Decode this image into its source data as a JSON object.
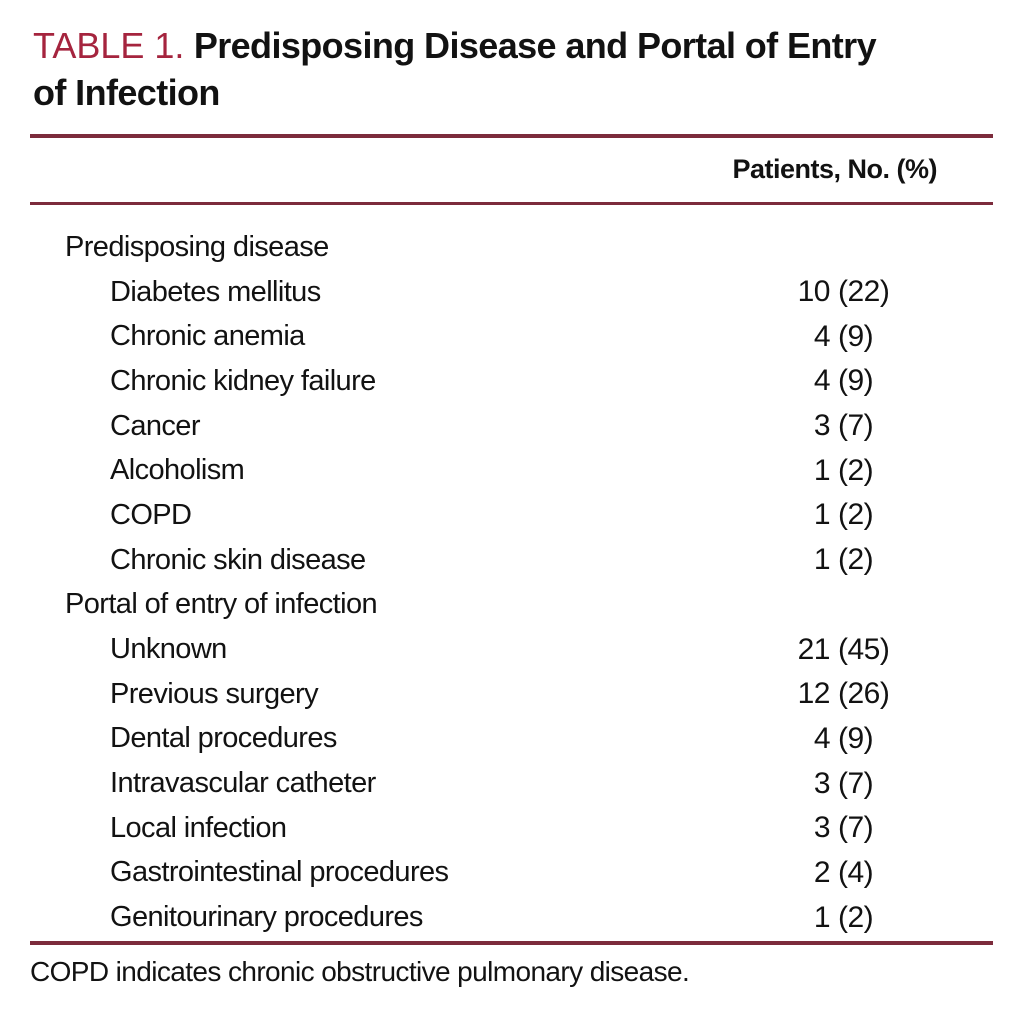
{
  "title": {
    "label": "TABLE 1.",
    "line1": "Predisposing Disease and Portal of Entry",
    "line2": "of Infection"
  },
  "columns": {
    "patients": "Patients, No. (%)"
  },
  "table": {
    "rows": [
      {
        "label": "Predisposing disease",
        "indent": 0,
        "count": "",
        "pct": ""
      },
      {
        "label": "Diabetes mellitus",
        "indent": 1,
        "count": "10",
        "pct": "(22)"
      },
      {
        "label": "Chronic anemia",
        "indent": 1,
        "count": "4",
        "pct": "(9)"
      },
      {
        "label": "Chronic kidney failure",
        "indent": 1,
        "count": "4",
        "pct": "(9)"
      },
      {
        "label": "Cancer",
        "indent": 1,
        "count": "3",
        "pct": "(7)"
      },
      {
        "label": "Alcoholism",
        "indent": 1,
        "count": "1",
        "pct": "(2)"
      },
      {
        "label": "COPD",
        "indent": 1,
        "count": "1",
        "pct": "(2)"
      },
      {
        "label": "Chronic skin disease",
        "indent": 1,
        "count": "1",
        "pct": "(2)"
      },
      {
        "label": "Portal of entry of infection",
        "indent": 0,
        "count": "",
        "pct": ""
      },
      {
        "label": "Unknown",
        "indent": 1,
        "count": "21",
        "pct": "(45)"
      },
      {
        "label": "Previous surgery",
        "indent": 1,
        "count": "12",
        "pct": "(26)"
      },
      {
        "label": "Dental procedures",
        "indent": 1,
        "count": "4",
        "pct": "(9)"
      },
      {
        "label": "Intravascular catheter",
        "indent": 1,
        "count": "3",
        "pct": "(7)"
      },
      {
        "label": "Local infection",
        "indent": 1,
        "count": "3",
        "pct": "(7)"
      },
      {
        "label": "Gastrointestinal procedures",
        "indent": 1,
        "count": "2",
        "pct": "(4)"
      },
      {
        "label": "Genitourinary procedures",
        "indent": 1,
        "count": "1",
        "pct": "(2)"
      }
    ]
  },
  "footnote": "COPD indicates chronic obstructive pulmonary disease.",
  "colors": {
    "accent_red": "#A5243E",
    "rule_maroon": "#7C2B3C",
    "text": "#121212"
  }
}
